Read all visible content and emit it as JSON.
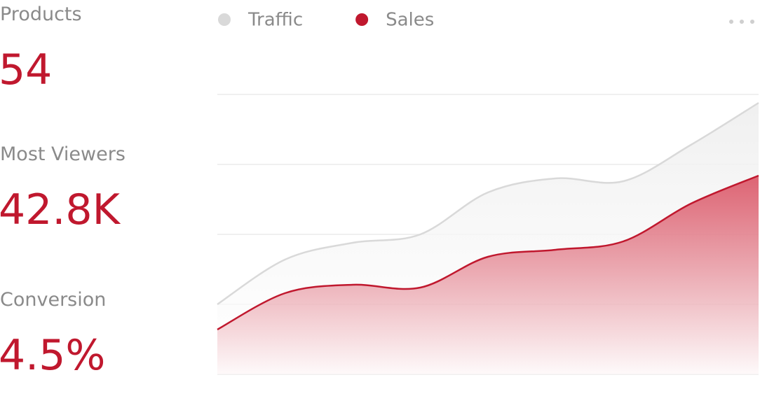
{
  "stats": [
    {
      "label": "Products",
      "value": "54"
    },
    {
      "label": "Most Viewers",
      "value": "42.8K"
    },
    {
      "label": "Conversion",
      "value": "4.5%"
    }
  ],
  "chart_data": {
    "type": "area",
    "categories": [
      null,
      null,
      null,
      null,
      null,
      null,
      null,
      null,
      null
    ],
    "series": [
      {
        "name": "Traffic",
        "color": "#d9d9d9",
        "values": [
          25,
          41,
          47,
          50,
          65,
          70,
          69,
          82,
          97
        ]
      },
      {
        "name": "Sales",
        "color": "#c0182e",
        "values": [
          16,
          29,
          32,
          31,
          42,
          44.5,
          47.5,
          61,
          71
        ]
      }
    ],
    "ylim": [
      0,
      100
    ],
    "yticks": [
      0,
      25,
      50,
      75,
      100
    ],
    "grid": true
  }
}
